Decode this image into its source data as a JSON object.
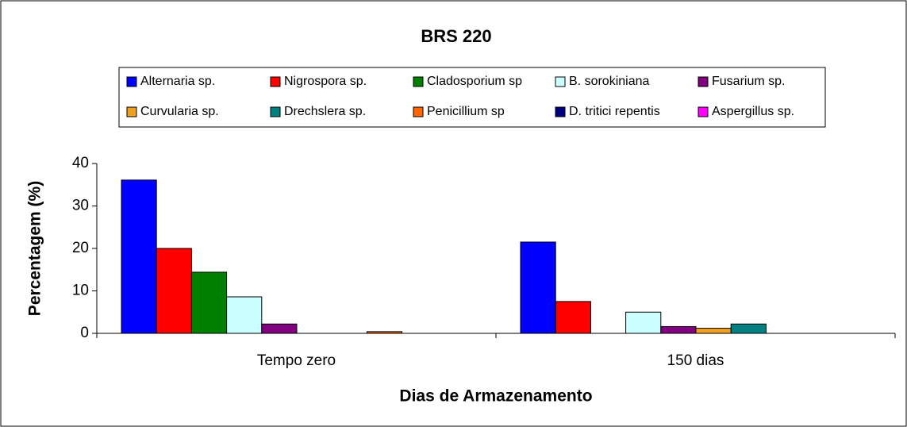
{
  "chart_data": {
    "type": "bar",
    "title": "BRS 220",
    "x_label": "Dias de Armazenamento",
    "y_label": "Percentagem (%)",
    "categories": [
      "Tempo zero",
      "150 dias"
    ],
    "series": [
      {
        "name": "Alternaria sp.",
        "color": "#0000ff",
        "values": [
          36.1,
          21.5
        ]
      },
      {
        "name": "Nigrospora sp.",
        "color": "#ff0000",
        "values": [
          20,
          7.5
        ]
      },
      {
        "name": "Cladosporium sp",
        "color": "#008000",
        "values": [
          14.4,
          0
        ]
      },
      {
        "name": "B. sorokiniana",
        "color": "#ccffff",
        "values": [
          8.6,
          5
        ]
      },
      {
        "name": "Fusarium sp.",
        "color": "#800080",
        "values": [
          2.2,
          1.6
        ]
      },
      {
        "name": "Curvularia sp.",
        "color": "#f0a020",
        "values": [
          0,
          1.2
        ]
      },
      {
        "name": "Drechslera sp.",
        "color": "#008080",
        "values": [
          0,
          2.2
        ]
      },
      {
        "name": "Penicillium sp",
        "color": "#ff6600",
        "values": [
          0.4,
          0
        ]
      },
      {
        "name": "D. tritici repentis",
        "color": "#000080",
        "values": [
          0,
          0
        ]
      },
      {
        "name": "Aspergillus sp.",
        "color": "#ff00ff",
        "values": [
          0,
          0
        ]
      }
    ],
    "ylim": [
      0,
      40
    ],
    "yticks": [
      0,
      10,
      20,
      30,
      40
    ],
    "grid": false
  }
}
